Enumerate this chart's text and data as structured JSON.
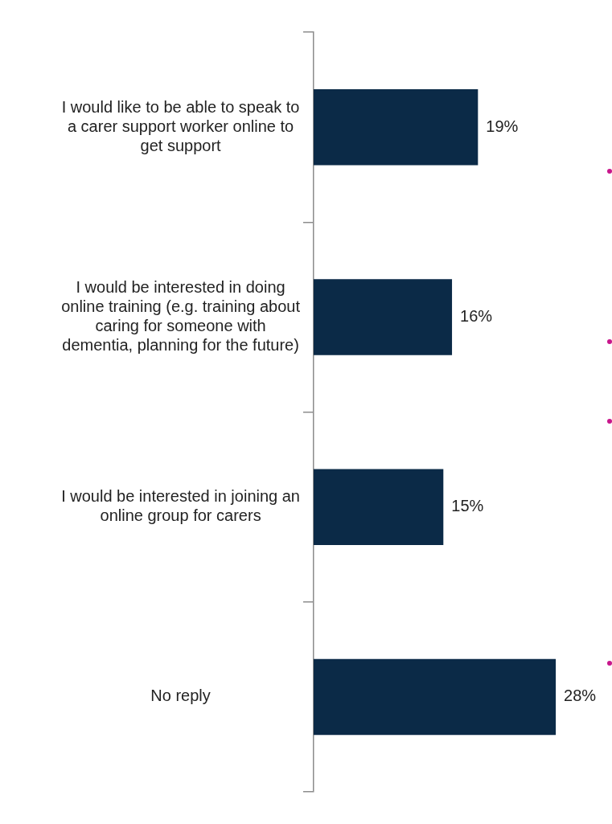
{
  "chart_data": {
    "type": "bar",
    "orientation": "horizontal",
    "categories": [
      "I would like to be able to speak to a carer support worker online to get support",
      "I would be interested in doing online training (e.g. training about caring for someone with dementia, planning for the future)",
      "I would be interested in joining an online group for carers",
      "No reply"
    ],
    "values": [
      19,
      16,
      15,
      28
    ],
    "color": "#0b2a47",
    "data_labels": true,
    "value_labels": [
      "19%",
      "16%",
      "15%",
      "28%"
    ],
    "grid": false,
    "legend": false
  }
}
